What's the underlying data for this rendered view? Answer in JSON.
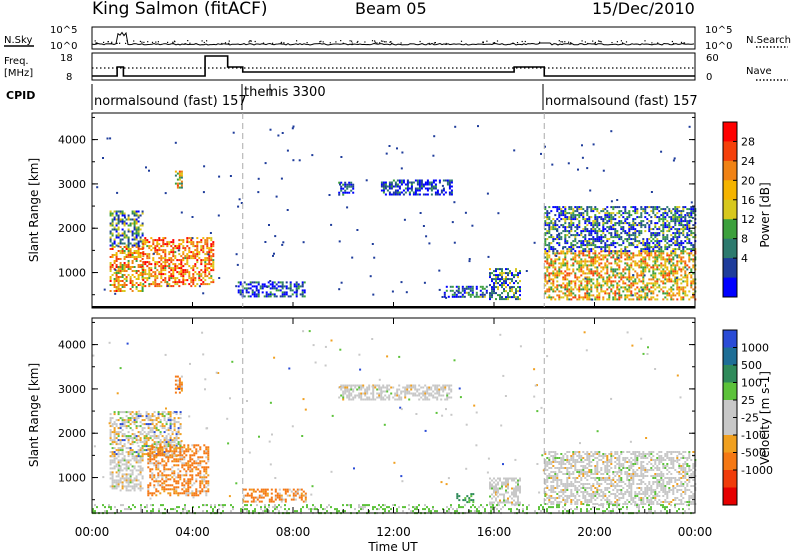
{
  "header": {
    "station": "King Salmon (fitACF)",
    "beam": "Beam 05",
    "date": "15/Dec/2010"
  },
  "top_panels": {
    "nsky_label": "N.Sky",
    "nsky_ticks": [
      "10^5",
      "10^0"
    ],
    "nsearch_label": "N.Search",
    "nsearch_ticks": [
      "10^5",
      "10^0"
    ],
    "freq_label_1": "Freq.",
    "freq_label_2": "[MHz]",
    "freq_ticks": [
      "18",
      "8"
    ],
    "nave_label": "Nave",
    "nave_ticks": [
      "60",
      "0"
    ],
    "cpid_label": "CPID",
    "cpid_segments": [
      {
        "label": "normalsound (fast) 157",
        "start_hour": 0.0
      },
      {
        "label": "themis 3300",
        "start_hour": 6.0
      },
      {
        "label": "normalsound (fast) 157",
        "start_hour": 18.0
      }
    ],
    "frequency_steps": [
      {
        "start_hour": 0.0,
        "level": "low"
      },
      {
        "start_hour": 1.0,
        "level": "mid"
      },
      {
        "start_hour": 1.25,
        "level": "low"
      },
      {
        "start_hour": 4.5,
        "level": "high"
      },
      {
        "start_hour": 5.4,
        "level": "mid"
      },
      {
        "start_hour": 6.0,
        "level": "base"
      },
      {
        "start_hour": 16.8,
        "level": "mid"
      },
      {
        "start_hour": 18.0,
        "level": "low"
      }
    ]
  },
  "chart_data": [
    {
      "type": "heatmap",
      "ylabel": "Slant Range [km]",
      "xlabel": "Time UT",
      "x_ticks": [
        "00:00",
        "04:00",
        "08:00",
        "12:00",
        "16:00",
        "20:00",
        "00:00"
      ],
      "y_ticks": [
        "1000",
        "2000",
        "3000",
        "4000"
      ],
      "xlim": [
        0,
        24
      ],
      "ylim": [
        200,
        4600
      ],
      "colorbar_label": "Power [dB]",
      "colorbar_ticks": [
        "28",
        "24",
        "20",
        "16",
        "12",
        "8",
        "4"
      ],
      "colorbar_colors": [
        "#ff0000",
        "#f5400a",
        "#f08214",
        "#f5b400",
        "#d7c81e",
        "#3ca03c",
        "#2d7a6e",
        "#1e3c9b",
        "#0000ff"
      ],
      "mode_boundaries_hours": [
        6.0,
        18.0
      ],
      "regions": [
        {
          "t": [
            0.7,
            2.0
          ],
          "r": [
            600,
            1600
          ],
          "level": 0.65
        },
        {
          "t": [
            0.7,
            2.0
          ],
          "r": [
            1600,
            2400
          ],
          "level": 0.3
        },
        {
          "t": [
            2.0,
            4.8
          ],
          "r": [
            700,
            1800
          ],
          "level": 0.7
        },
        {
          "t": [
            3.3,
            3.6
          ],
          "r": [
            2900,
            3300
          ],
          "level": 0.55
        },
        {
          "t": [
            5.8,
            8.5
          ],
          "r": [
            450,
            800
          ],
          "level": 0.15
        },
        {
          "t": [
            9.8,
            10.4
          ],
          "r": [
            2750,
            3050
          ],
          "level": 0.1
        },
        {
          "t": [
            11.5,
            14.3
          ],
          "r": [
            2750,
            3100
          ],
          "level": 0.12
        },
        {
          "t": [
            14.0,
            15.7
          ],
          "r": [
            450,
            700
          ],
          "level": 0.2
        },
        {
          "t": [
            15.8,
            17.0
          ],
          "r": [
            400,
            1100
          ],
          "level": 0.3
        },
        {
          "t": [
            18.0,
            24.0
          ],
          "r": [
            400,
            1500
          ],
          "level": 0.6
        },
        {
          "t": [
            18.0,
            24.0
          ],
          "r": [
            1500,
            2500
          ],
          "level": 0.25
        }
      ]
    },
    {
      "type": "heatmap",
      "ylabel": "Slant Range [km]",
      "xlabel": "Time UT",
      "x_ticks": [
        "00:00",
        "04:00",
        "08:00",
        "12:00",
        "16:00",
        "20:00",
        "00:00"
      ],
      "y_ticks": [
        "1000",
        "2000",
        "3000",
        "4000"
      ],
      "xlim": [
        0,
        24
      ],
      "ylim": [
        200,
        4600
      ],
      "colorbar_label": "Velocity [m s-1]",
      "colorbar_ticks": [
        "1000",
        "500",
        "100",
        "25",
        "-25",
        "-100",
        "-500",
        "-1000"
      ],
      "colorbar_colors": [
        "#2a4bd6",
        "#1e6e96",
        "#2f8a5a",
        "#5cc23a",
        "#c8c8c8",
        "#c8c8c8",
        "#f0a020",
        "#f57814",
        "#f03c0a",
        "#e60000"
      ],
      "mode_boundaries_hours": [
        6.0,
        18.0
      ],
      "regions": [
        {
          "t": [
            0.7,
            2.0
          ],
          "r": [
            700,
            1500
          ],
          "kind": "gray"
        },
        {
          "t": [
            0.7,
            3.5
          ],
          "r": [
            1500,
            2500
          ],
          "kind": "mixed"
        },
        {
          "t": [
            2.2,
            4.6
          ],
          "r": [
            600,
            1750
          ],
          "kind": "orange"
        },
        {
          "t": [
            3.3,
            3.6
          ],
          "r": [
            2900,
            3300
          ],
          "kind": "orange"
        },
        {
          "t": [
            6.0,
            8.5
          ],
          "r": [
            450,
            750
          ],
          "kind": "orange"
        },
        {
          "t": [
            9.8,
            14.3
          ],
          "r": [
            2750,
            3100
          ],
          "kind": "gray"
        },
        {
          "t": [
            14.5,
            15.2
          ],
          "r": [
            450,
            650
          ],
          "kind": "green"
        },
        {
          "t": [
            15.8,
            17.0
          ],
          "r": [
            400,
            1000
          ],
          "kind": "gray"
        },
        {
          "t": [
            18.0,
            24.0
          ],
          "r": [
            400,
            1600
          ],
          "kind": "gray"
        },
        {
          "t": [
            0.0,
            24.0
          ],
          "r": [
            200,
            400
          ],
          "kind": "ground"
        }
      ]
    }
  ]
}
